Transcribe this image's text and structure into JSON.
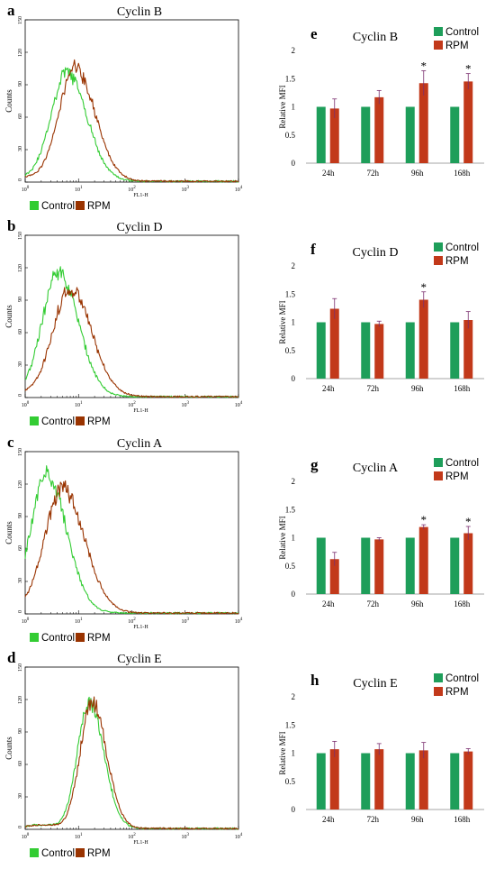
{
  "colors": {
    "control_hist": "#33cc33",
    "rpm_hist": "#993300",
    "control_bar": "#1e9e5a",
    "rpm_bar": "#c2391a",
    "errorbar": "#7a2e6e"
  },
  "chart_data": [
    {
      "type": "line",
      "panel": "a",
      "title": "Cyclin B",
      "xlabel": "FL1-H",
      "ylabel": "Counts",
      "x_scale": "log",
      "xlim": [
        1,
        10000
      ],
      "x_ticks": [
        {
          "m": "10",
          "e": "0"
        },
        {
          "m": "10",
          "e": "1"
        },
        {
          "m": "10",
          "e": "2"
        },
        {
          "m": "10",
          "e": "3"
        },
        {
          "m": "10",
          "e": "4"
        }
      ],
      "ylim": [
        0,
        150
      ],
      "y_ticks": [
        "0",
        "30",
        "60",
        "90",
        "120",
        "150"
      ],
      "series": [
        {
          "name": "Control",
          "mode": 0.78,
          "sigma": 0.3,
          "peak": 100
        },
        {
          "name": "RPM",
          "mode": 0.93,
          "sigma": 0.3,
          "peak": 105
        }
      ],
      "legend": [
        "Control",
        "RPM"
      ]
    },
    {
      "type": "line",
      "panel": "b",
      "title": "Cyclin D",
      "xlabel": "FL1-H",
      "ylabel": "Counts",
      "x_scale": "log",
      "xlim": [
        1,
        10000
      ],
      "x_ticks": [
        {
          "m": "10",
          "e": "0"
        },
        {
          "m": "10",
          "e": "1"
        },
        {
          "m": "10",
          "e": "2"
        },
        {
          "m": "10",
          "e": "3"
        },
        {
          "m": "10",
          "e": "4"
        }
      ],
      "ylim": [
        0,
        150
      ],
      "y_ticks": [
        "0",
        "30",
        "60",
        "90",
        "120",
        "150"
      ],
      "series": [
        {
          "name": "Control",
          "mode": 0.62,
          "sigma": 0.3,
          "peak": 115
        },
        {
          "name": "RPM",
          "mode": 0.84,
          "sigma": 0.32,
          "peak": 100
        }
      ],
      "legend": [
        "Control",
        "RPM"
      ]
    },
    {
      "type": "line",
      "panel": "c",
      "title": "Cyclin A",
      "xlabel": "FL1-H",
      "ylabel": "Counts",
      "x_scale": "log",
      "xlim": [
        1,
        10000
      ],
      "x_ticks": [
        {
          "m": "10",
          "e": "0"
        },
        {
          "m": "10",
          "e": "1"
        },
        {
          "m": "10",
          "e": "2"
        },
        {
          "m": "10",
          "e": "3"
        },
        {
          "m": "10",
          "e": "4"
        }
      ],
      "ylim": [
        0,
        150
      ],
      "y_ticks": [
        "0",
        "30",
        "60",
        "90",
        "120",
        "150"
      ],
      "series": [
        {
          "name": "Control",
          "mode": 0.4,
          "sigma": 0.3,
          "peak": 127
        },
        {
          "name": "RPM",
          "mode": 0.7,
          "sigma": 0.33,
          "peak": 115
        }
      ],
      "legend": [
        "Control",
        "RPM"
      ]
    },
    {
      "type": "line",
      "panel": "d",
      "title": "Cyclin E",
      "xlabel": "FL1-H",
      "ylabel": "Counts",
      "x_scale": "log",
      "xlim": [
        1,
        10000
      ],
      "x_ticks": [
        {
          "m": "10",
          "e": "0"
        },
        {
          "m": "10",
          "e": "1"
        },
        {
          "m": "10",
          "e": "2"
        },
        {
          "m": "10",
          "e": "3"
        },
        {
          "m": "10",
          "e": "4"
        }
      ],
      "ylim": [
        0,
        150
      ],
      "y_ticks": [
        "0",
        "30",
        "60",
        "90",
        "120",
        "150"
      ],
      "series": [
        {
          "name": "Control",
          "mode": 1.2,
          "sigma": 0.22,
          "peak": 115
        },
        {
          "name": "RPM",
          "mode": 1.25,
          "sigma": 0.22,
          "peak": 117
        }
      ],
      "legend": [
        "Control",
        "RPM"
      ]
    },
    {
      "type": "bar",
      "panel": "e",
      "title": "Cyclin B",
      "ylabel": "Relative MFI",
      "categories": [
        "24h",
        "72h",
        "96h",
        "168h"
      ],
      "ylim": [
        0,
        2
      ],
      "y_ticks": [
        "0",
        "0.5",
        "1",
        "1.5",
        "2"
      ],
      "series": [
        {
          "name": "Control",
          "values": [
            1,
            1,
            1,
            1
          ]
        },
        {
          "name": "RPM",
          "values": [
            0.97,
            1.17,
            1.42,
            1.45
          ],
          "errors": [
            0.17,
            0.12,
            0.22,
            0.14
          ]
        }
      ],
      "significant": [
        false,
        false,
        true,
        true
      ],
      "annotations": [
        "*",
        "*"
      ]
    },
    {
      "type": "bar",
      "panel": "f",
      "title": "Cyclin D",
      "ylabel": "Relative MFI",
      "categories": [
        "24h",
        "72h",
        "96h",
        "168h"
      ],
      "ylim": [
        0,
        2
      ],
      "y_ticks": [
        "0",
        "0.5",
        "1",
        "1.5",
        "2"
      ],
      "series": [
        {
          "name": "Control",
          "values": [
            1,
            1,
            1,
            1
          ]
        },
        {
          "name": "RPM",
          "values": [
            1.24,
            0.97,
            1.4,
            1.04
          ],
          "errors": [
            0.18,
            0.05,
            0.14,
            0.15
          ]
        }
      ],
      "significant": [
        false,
        false,
        true,
        false
      ],
      "annotations": [
        "*"
      ]
    },
    {
      "type": "bar",
      "panel": "g",
      "title": "Cyclin A",
      "ylabel": "Relative MFI",
      "categories": [
        "24h",
        "72h",
        "96h",
        "168h"
      ],
      "ylim": [
        0,
        2
      ],
      "y_ticks": [
        "0",
        "0.5",
        "1",
        "1.5",
        "2"
      ],
      "series": [
        {
          "name": "Control",
          "values": [
            1,
            1,
            1,
            1
          ]
        },
        {
          "name": "RPM",
          "values": [
            0.62,
            0.97,
            1.19,
            1.08
          ],
          "errors": [
            0.12,
            0.03,
            0.04,
            0.12
          ]
        }
      ],
      "significant": [
        false,
        false,
        true,
        true
      ],
      "annotations": [
        "*",
        "*"
      ]
    },
    {
      "type": "bar",
      "panel": "h",
      "title": "Cyclin E",
      "ylabel": "Relative MFI",
      "categories": [
        "24h",
        "72h",
        "96h",
        "168h"
      ],
      "ylim": [
        0,
        2
      ],
      "y_ticks": [
        "0",
        "0.5",
        "1",
        "1.5",
        "2"
      ],
      "series": [
        {
          "name": "Control",
          "values": [
            1,
            1,
            1,
            1
          ]
        },
        {
          "name": "RPM",
          "values": [
            1.07,
            1.07,
            1.05,
            1.03
          ],
          "errors": [
            0.14,
            0.1,
            0.14,
            0.05
          ]
        }
      ],
      "significant": [
        false,
        false,
        false,
        false
      ],
      "annotations": []
    }
  ]
}
